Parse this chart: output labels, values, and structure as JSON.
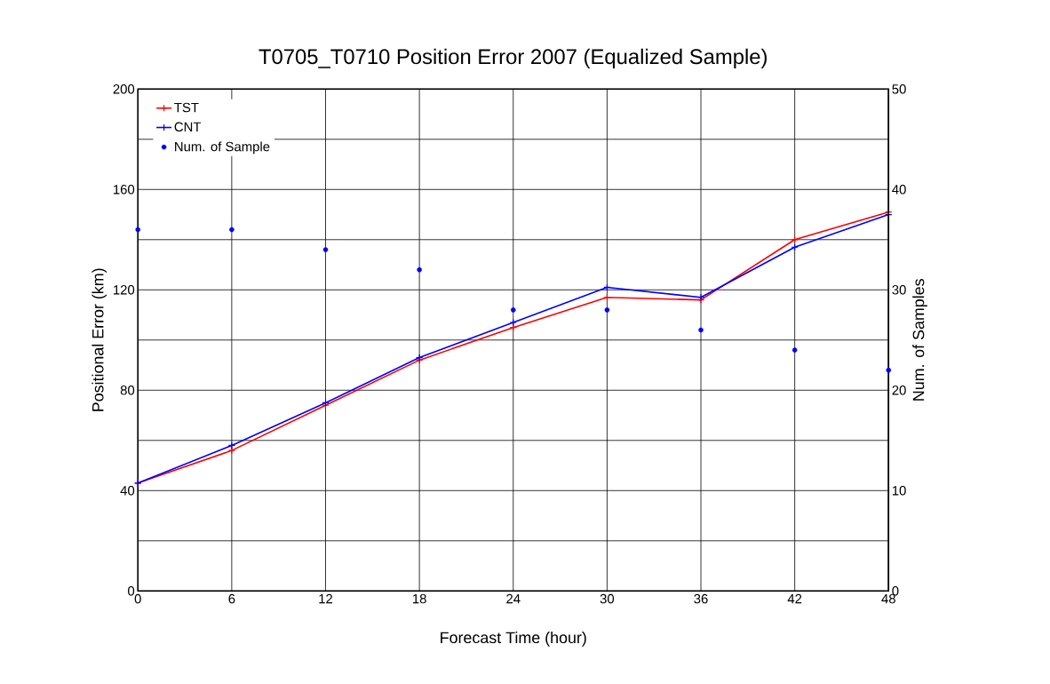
{
  "chart_data": {
    "type": "line",
    "title": "T0705_T0710 Position Error 2007  (Equalized Sample)",
    "xlabel": "Forecast Time (hour)",
    "ylabel": "Positional Error (km)",
    "y2label": "Num. of Samples",
    "x": [
      0,
      6,
      12,
      18,
      24,
      30,
      36,
      42,
      48
    ],
    "series": [
      {
        "name": "TST",
        "color": "#ff0000",
        "marker": "cross",
        "values": [
          43,
          56,
          74,
          92,
          105,
          117,
          116,
          140,
          151
        ]
      },
      {
        "name": "CNT",
        "color": "#0000ff",
        "marker": "cross",
        "values": [
          43,
          58,
          75,
          93,
          107,
          121,
          117,
          137,
          150
        ]
      },
      {
        "name": "Num. of Sample",
        "type": "scatter",
        "axis": "y2",
        "color": "#0000ff",
        "marker": "circle",
        "values": [
          36,
          36,
          34,
          32,
          28,
          28,
          26,
          24,
          22
        ]
      }
    ],
    "xlim": [
      0,
      48
    ],
    "xticks": [
      0,
      6,
      12,
      18,
      24,
      30,
      36,
      42,
      48
    ],
    "ylim": [
      0,
      200
    ],
    "yticks": [
      0,
      {
        "value": 20,
        "label": null
      },
      40,
      {
        "value": 60,
        "label": null
      },
      80,
      {
        "value": 100,
        "label": null
      },
      120,
      {
        "value": 140,
        "label": null
      },
      160,
      {
        "value": 180,
        "label": null
      },
      200
    ],
    "y2lim": [
      0,
      50
    ],
    "y2ticks": [
      0,
      10,
      20,
      30,
      40,
      50
    ],
    "grid": true,
    "legend": "top left"
  }
}
